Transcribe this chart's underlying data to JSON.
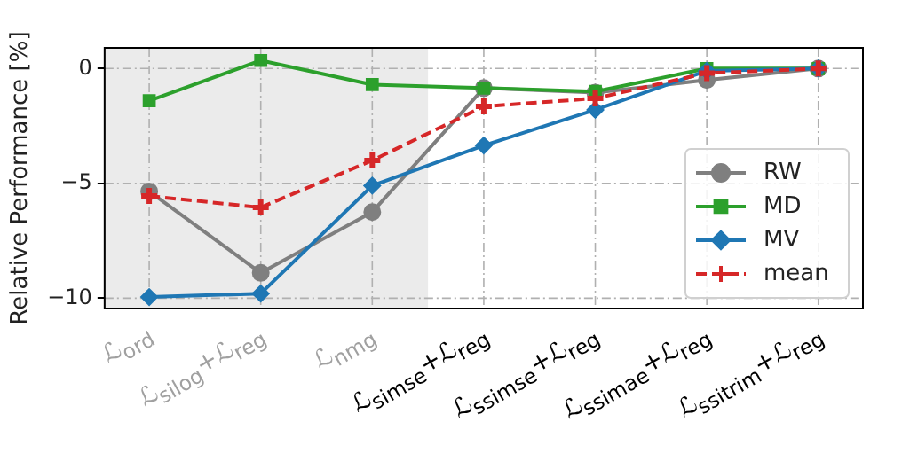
{
  "chart_data": {
    "type": "line",
    "ylabel": "Relative Performance [%]",
    "categories": [
      "ℒ$_{ord}$",
      "ℒ$_{silog}$+ℒ$_{reg}$",
      "ℒ$_{nmg}$",
      "ℒ$_{simse}$+ℒ$_{reg}$",
      "ℒ$_{ssimse}$+ℒ$_{reg}$",
      "ℒ$_{ssimae}$+ℒ$_{reg}$",
      "ℒ$_{ssitrim}$+ℒ$_{reg}$"
    ],
    "series": [
      {
        "name": "RW",
        "color": "#7f7f7f",
        "marker": "circle",
        "line_style": "solid",
        "values": [
          -5.35,
          -8.9,
          -6.25,
          -0.85,
          -1.05,
          -0.5,
          0
        ]
      },
      {
        "name": "MD",
        "color": "#2ca02c",
        "marker": "square",
        "line_style": "solid",
        "values": [
          -1.4,
          0.35,
          -0.7,
          -0.85,
          -1.0,
          0,
          0
        ]
      },
      {
        "name": "MV",
        "color": "#1f77b4",
        "marker": "diamond",
        "line_style": "solid",
        "values": [
          -9.95,
          -9.8,
          -5.1,
          -3.35,
          -1.8,
          -0.1,
          0
        ]
      },
      {
        "name": "mean",
        "color": "#d62728",
        "marker": "cross",
        "line_style": "dashed",
        "values": [
          -5.55,
          -6.05,
          -4.0,
          -1.65,
          -1.3,
          -0.2,
          0
        ]
      }
    ],
    "ylim": [
      -10.45,
      0.9
    ],
    "yticks": [
      {
        "value": 0,
        "label": "0"
      },
      {
        "value": -5,
        "label": "−5"
      },
      {
        "value": -10,
        "label": "−10"
      }
    ],
    "bands": [
      {
        "axis": "x",
        "from": "ℒ$_{ord}$",
        "to": "ℒ$_{nmg}$",
        "color": "#ebebeb"
      }
    ],
    "grid": true,
    "legend": "bottom right"
  }
}
